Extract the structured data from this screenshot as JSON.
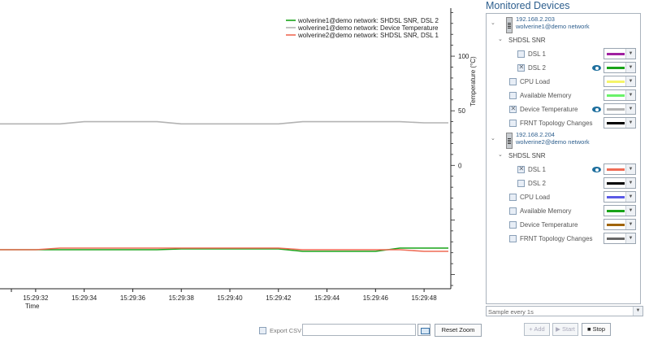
{
  "chart_data": {
    "type": "line",
    "x": [
      "15:29:31",
      "15:29:32",
      "15:29:33",
      "15:29:34",
      "15:29:35",
      "15:29:36",
      "15:29:37",
      "15:29:38",
      "15:29:39",
      "15:29:40",
      "15:29:41",
      "15:29:42",
      "15:29:43",
      "15:29:44",
      "15:29:45",
      "15:29:46",
      "15:29:47",
      "15:29:48",
      "15:29:49"
    ],
    "x_ticks": [
      "15:29:32",
      "15:29:34",
      "15:29:36",
      "15:29:38",
      "15:29:40",
      "15:29:42",
      "15:29:44",
      "15:29:46",
      "15:29:48"
    ],
    "xlabel": "Time",
    "y_right_label": "Temperature (°C)",
    "y_right_ticks": [
      100,
      50,
      0
    ],
    "y_right_lim": [
      -113,
      144
    ],
    "legend_position": "top-right",
    "series": [
      {
        "name": "wolverine1@demo network: SHDSL SNR, DSL 2",
        "color": "#19a319",
        "axis": "left",
        "values": [
          0.0,
          0.0,
          0.0,
          0.0,
          0.0,
          0.0,
          0.0,
          0.1,
          0.1,
          0.1,
          0.1,
          0.1,
          -0.2,
          -0.2,
          -0.2,
          -0.2,
          0.2,
          0.2,
          0.2
        ]
      },
      {
        "name": "wolverine1@demo network: Device Temperature",
        "color": "#b3b3b3",
        "axis": "right",
        "values": [
          38,
          38,
          38,
          40,
          40,
          40,
          40,
          38,
          38,
          38,
          38,
          38,
          40,
          40,
          40,
          40,
          40,
          39,
          39
        ]
      },
      {
        "name": "wolverine2@demo network: SHDSL SNR, DSL 1",
        "color": "#ef6b55",
        "axis": "left",
        "values": [
          0.0,
          0.0,
          0.2,
          0.2,
          0.2,
          0.2,
          0.2,
          0.2,
          0.2,
          0.2,
          0.2,
          0.2,
          0.0,
          0.0,
          0.0,
          0.0,
          0.0,
          -0.2,
          -0.2
        ]
      }
    ]
  },
  "panel": {
    "title": "Monitored Devices",
    "devices": [
      {
        "ip": "192.168.2.203",
        "name": "wolverine1@demo network",
        "group": "SHDSL SNR",
        "items": [
          {
            "label": "DSL 1",
            "checked": false,
            "visible": false,
            "color": "#a020a0"
          },
          {
            "label": "DSL 2",
            "checked": true,
            "visible": true,
            "color": "#19a319"
          },
          {
            "label": "CPU Load",
            "checked": false,
            "visible": false,
            "color": "#f5f56a"
          },
          {
            "label": "Available Memory",
            "checked": false,
            "visible": false,
            "color": "#6af26a"
          },
          {
            "label": "Device Temperature",
            "checked": true,
            "visible": true,
            "color": "#b3b3b3"
          },
          {
            "label": "FRNT Topology Changes",
            "checked": false,
            "visible": false,
            "color": "#000000"
          }
        ]
      },
      {
        "ip": "192.168.2.204",
        "name": "wolverine2@demo network",
        "group": "SHDSL SNR",
        "items": [
          {
            "label": "DSL 1",
            "checked": true,
            "visible": true,
            "color": "#ef6b55"
          },
          {
            "label": "DSL 2",
            "checked": false,
            "visible": false,
            "color": "#000000"
          },
          {
            "label": "CPU Load",
            "checked": false,
            "visible": false,
            "color": "#5a5ae6"
          },
          {
            "label": "Available Memory",
            "checked": false,
            "visible": false,
            "color": "#19a319"
          },
          {
            "label": "Device Temperature",
            "checked": false,
            "visible": false,
            "color": "#a0640a"
          },
          {
            "label": "FRNT Topology Changes",
            "checked": false,
            "visible": false,
            "color": "#666666"
          }
        ]
      }
    ],
    "sample_interval": "Sample every 1s"
  },
  "toolbar": {
    "export_csv_label": "Export CSV",
    "csv_path_value": "",
    "reset_zoom_label": "Reset Zoom",
    "add_label": "+ Add",
    "start_label": "▶ Start",
    "stop_label": "■ Stop"
  }
}
